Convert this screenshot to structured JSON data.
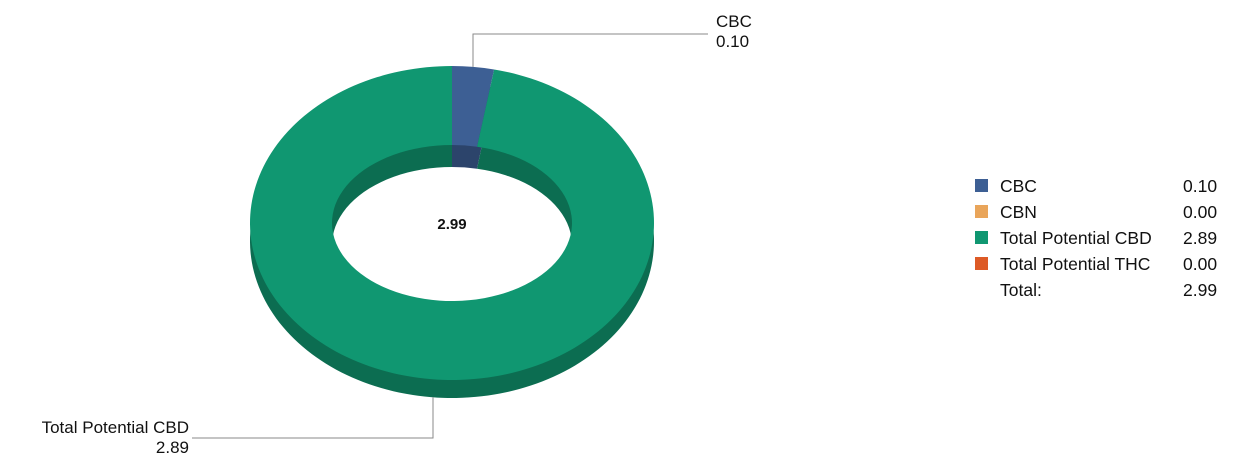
{
  "chart_data": {
    "type": "pie",
    "variant": "donut",
    "center_label": "2.99",
    "slices": [
      {
        "label": "CBC",
        "value": 0.1,
        "display": "0.10",
        "color": "#3d5f94"
      },
      {
        "label": "CBN",
        "value": 0.0,
        "display": "0.00",
        "color": "#e9a55a"
      },
      {
        "label": "Total Potential CBD",
        "value": 2.89,
        "display": "2.89",
        "color": "#109771"
      },
      {
        "label": "Total Potential THC",
        "value": 0.0,
        "display": "0.00",
        "color": "#dd5a26"
      }
    ],
    "callouts": [
      {
        "label": "CBC",
        "value": "0.10"
      },
      {
        "label": "Total Potential CBD",
        "value": "2.89"
      }
    ],
    "legend": {
      "position": "right",
      "total_label": "Total:",
      "total_value": "2.99"
    }
  }
}
